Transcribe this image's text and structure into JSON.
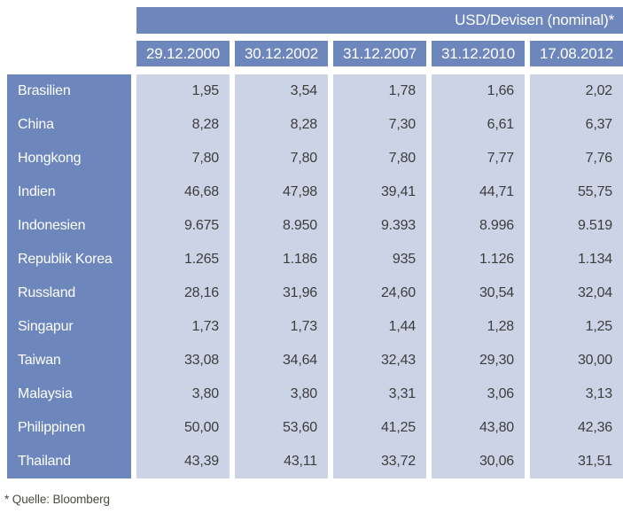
{
  "chart_data": {
    "type": "table",
    "title": "USD/Devisen (nominal)*",
    "columns": [
      "29.12.2000",
      "30.12.2002",
      "31.12.2007",
      "31.12.2010",
      "17.08.2012"
    ],
    "rows": [
      {
        "label": "Brasilien",
        "values": [
          "1,95",
          "3,54",
          "1,78",
          "1,66",
          "2,02"
        ]
      },
      {
        "label": "China",
        "values": [
          "8,28",
          "8,28",
          "7,30",
          "6,61",
          "6,37"
        ]
      },
      {
        "label": "Hongkong",
        "values": [
          "7,80",
          "7,80",
          "7,80",
          "7,77",
          "7,76"
        ]
      },
      {
        "label": "Indien",
        "values": [
          "46,68",
          "47,98",
          "39,41",
          "44,71",
          "55,75"
        ]
      },
      {
        "label": "Indonesien",
        "values": [
          "9.675",
          "8.950",
          "9.393",
          "8.996",
          "9.519"
        ]
      },
      {
        "label": "Republik Korea",
        "values": [
          "1.265",
          "1.186",
          "935",
          "1.126",
          "1.134"
        ]
      },
      {
        "label": "Russland",
        "values": [
          "28,16",
          "31,96",
          "24,60",
          "30,54",
          "32,04"
        ]
      },
      {
        "label": "Singapur",
        "values": [
          "1,73",
          "1,73",
          "1,44",
          "1,28",
          "1,25"
        ]
      },
      {
        "label": "Taiwan",
        "values": [
          "33,08",
          "34,64",
          "32,43",
          "29,30",
          "30,00"
        ]
      },
      {
        "label": "Malaysia",
        "values": [
          "3,80",
          "3,80",
          "3,31",
          "3,06",
          "3,13"
        ]
      },
      {
        "label": "Philippinen",
        "values": [
          "50,00",
          "53,60",
          "41,25",
          "43,80",
          "42,36"
        ]
      },
      {
        "label": "Thailand",
        "values": [
          "43,39",
          "43,11",
          "33,72",
          "30,06",
          "31,51"
        ]
      }
    ],
    "footnote": "* Quelle: Bloomberg"
  },
  "colors": {
    "header_blue": "#6d87bd",
    "cell_light": "#ccd3e7",
    "header_text": "#ffffff",
    "cell_text": "#3d3d3d",
    "footnote_text": "#4c4a43"
  }
}
